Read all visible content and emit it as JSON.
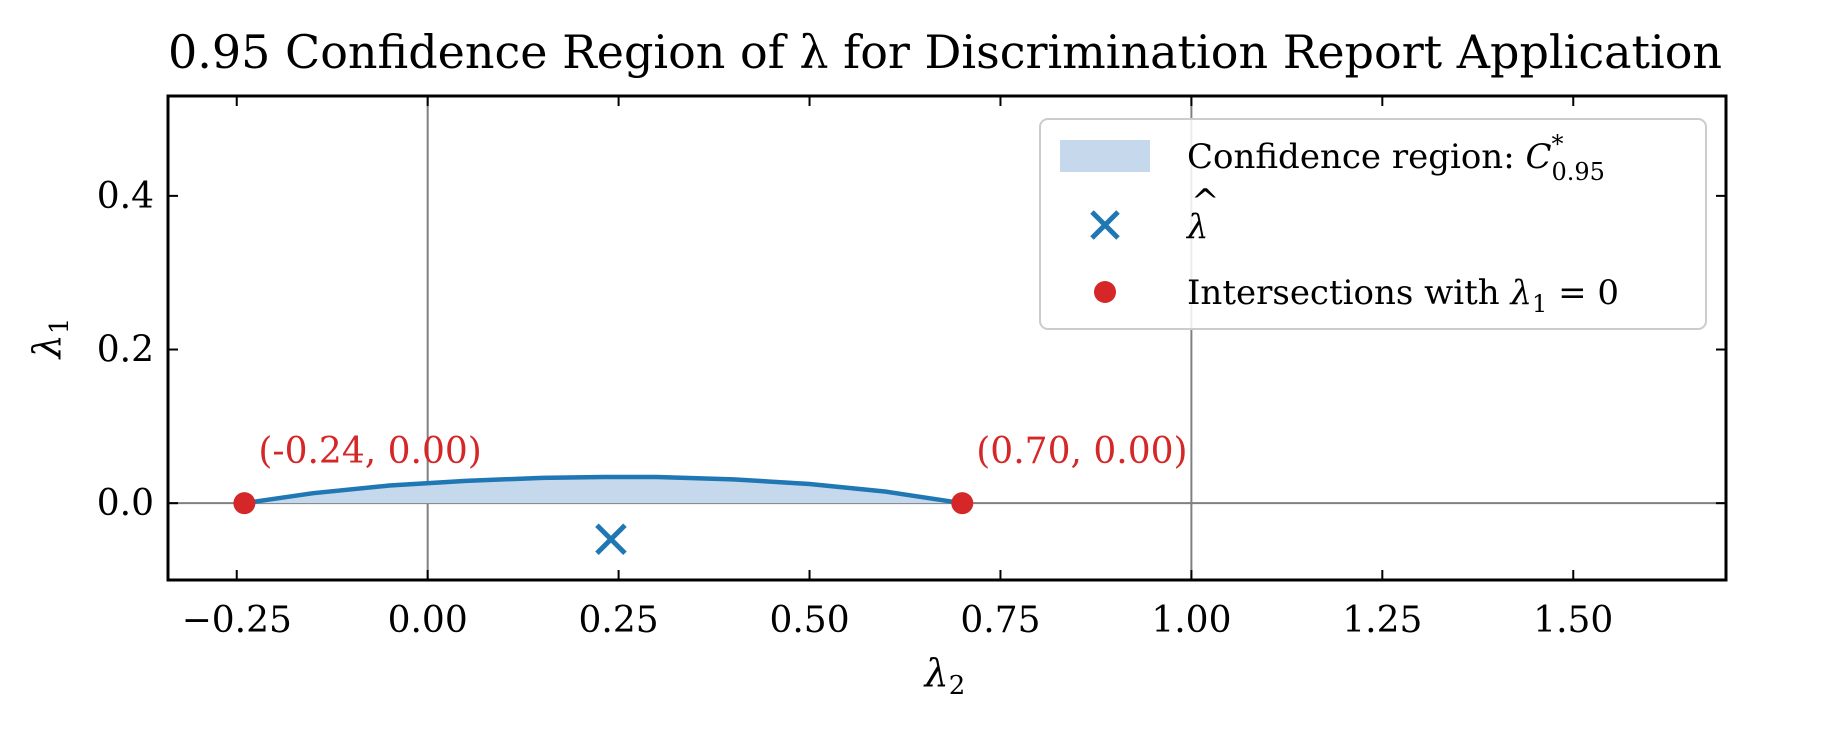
{
  "chart_data": {
    "type": "scatter",
    "title": "0.95 Confidence Region of λ for Discrimination Report Application",
    "xlabel": "λ",
    "xlabel_sub": "2",
    "ylabel": "λ",
    "ylabel_sub": "1",
    "xlim": [
      -0.34,
      1.7
    ],
    "ylim": [
      -0.1,
      0.53
    ],
    "xticks": [
      -0.25,
      0.0,
      0.25,
      0.5,
      0.75,
      1.0,
      1.25,
      1.5
    ],
    "xtick_labels": [
      "−0.25",
      "0.00",
      "0.25",
      "0.50",
      "0.75",
      "1.00",
      "1.25",
      "1.50"
    ],
    "yticks": [
      0.0,
      0.2,
      0.4
    ],
    "ytick_labels": [
      "0.0",
      "0.2",
      "0.4"
    ],
    "reference_lines": {
      "vertical": [
        0.0,
        1.0
      ],
      "horizontal": [
        0.0
      ]
    },
    "confidence_region": {
      "name": "Confidence region: C*0.95",
      "boundary": [
        [
          -0.24,
          0.0
        ],
        [
          -0.15,
          0.013
        ],
        [
          -0.05,
          0.023
        ],
        [
          0.05,
          0.029
        ],
        [
          0.15,
          0.033
        ],
        [
          0.23,
          0.034
        ],
        [
          0.3,
          0.034
        ],
        [
          0.4,
          0.031
        ],
        [
          0.5,
          0.025
        ],
        [
          0.6,
          0.015
        ],
        [
          0.7,
          0.0
        ]
      ],
      "color": "#1f77b4",
      "fill_color": "#c6d9ec"
    },
    "lambda_hat": {
      "name": "lambda-hat",
      "x": 0.24,
      "y": -0.047,
      "color": "#1f77b4"
    },
    "intersections": {
      "name": "Intersections with λ1 = 0",
      "points": [
        {
          "x": -0.24,
          "y": 0.0
        },
        {
          "x": 0.7,
          "y": 0.0
        }
      ],
      "labels": [
        "(-0.24, 0.00)",
        "(0.70, 0.00)"
      ],
      "color": "#d62728"
    },
    "legend": {
      "position": "top-right",
      "entries": [
        {
          "label": "Confidence region:  ",
          "math": "C",
          "sup": "*",
          "sub": "0.95"
        },
        {
          "label": "",
          "math": "λ",
          "hat": "^"
        },
        {
          "label": "Intersections with ",
          "math": "λ",
          "sub": "1",
          "tail": " = 0"
        }
      ]
    }
  }
}
